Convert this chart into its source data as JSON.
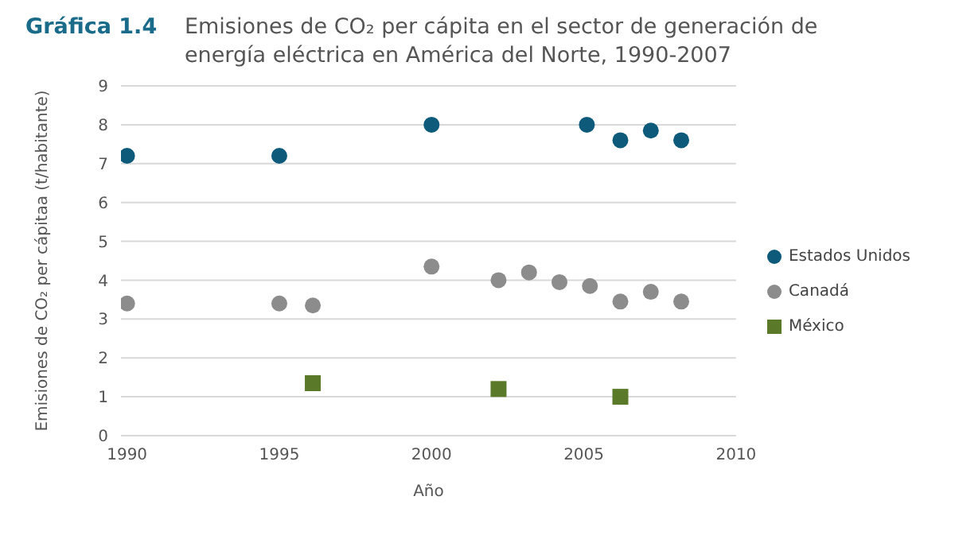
{
  "chart_data": {
    "type": "scatter",
    "title": "Emisiones de CO₂ per cápita en el sector de generación de energía eléctrica en América del Norte, 1990-2007",
    "annotations": [
      "Gráfica 1.4"
    ],
    "xlabel": "Año",
    "ylabel": "Emisiones de CO₂ per cápitaa (t/habitante)",
    "xlim": [
      1989.8,
      2010
    ],
    "xticks": [
      1990,
      1995,
      2000,
      2005,
      2010
    ],
    "ylim": [
      0,
      9
    ],
    "yticks": [
      0,
      1,
      2,
      3,
      4,
      5,
      6,
      7,
      8,
      9
    ],
    "grid": "y",
    "legend": "right",
    "series": [
      {
        "name": "Estados Unidos",
        "color": "#0d5a7a",
        "marker": "circle",
        "x": [
          1990,
          1995,
          2000,
          2005.1,
          2006.2,
          2007.2,
          2008.2
        ],
        "values": [
          7.2,
          7.2,
          8.0,
          8.0,
          7.6,
          7.85,
          7.6
        ]
      },
      {
        "name": "Canadá",
        "color": "#8c8c8c",
        "marker": "circle",
        "x": [
          1990,
          1995,
          1996.1,
          2000,
          2002.2,
          2003.2,
          2004.2,
          2005.2,
          2006.2,
          2007.2,
          2008.2
        ],
        "values": [
          3.4,
          3.4,
          3.35,
          4.35,
          4.0,
          4.2,
          3.95,
          3.85,
          3.45,
          3.7,
          3.45
        ]
      },
      {
        "name": "México",
        "color": "#5a7a2a",
        "marker": "square",
        "x": [
          1996.1,
          2002.2,
          2006.2
        ],
        "values": [
          1.35,
          1.2,
          1.0
        ]
      }
    ]
  }
}
